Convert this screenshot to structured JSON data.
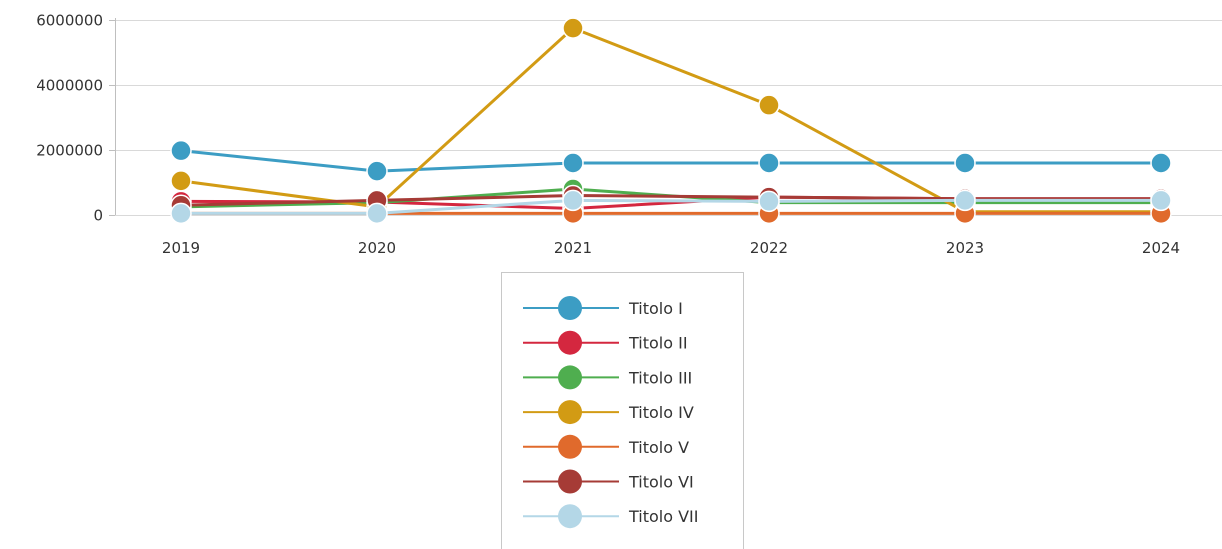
{
  "chart_data": {
    "type": "line",
    "title": "",
    "xlabel": "",
    "ylabel": "",
    "categories": [
      "2019",
      "2020",
      "2021",
      "2022",
      "2023",
      "2024"
    ],
    "ylim": [
      0,
      6000000
    ],
    "yticks": [
      0,
      2000000,
      4000000,
      6000000
    ],
    "ytick_labels": [
      "0",
      "2000000",
      "4000000",
      "6000000"
    ],
    "grid": true,
    "legend_position": "bottom-center",
    "series": [
      {
        "name": "Titolo I",
        "color": "#3c9dc4",
        "values": [
          1980000,
          1350000,
          1600000,
          1600000,
          1600000,
          1600000
        ]
      },
      {
        "name": "Titolo II",
        "color": "#d4273f",
        "values": [
          420000,
          400000,
          200000,
          550000,
          500000,
          500000
        ]
      },
      {
        "name": "Titolo III",
        "color": "#4fae4f",
        "values": [
          250000,
          380000,
          800000,
          380000,
          380000,
          380000
        ]
      },
      {
        "name": "Titolo IV",
        "color": "#d29b14",
        "values": [
          1050000,
          250000,
          5750000,
          3380000,
          100000,
          100000
        ]
      },
      {
        "name": "Titolo V",
        "color": "#e06a2c",
        "values": [
          50000,
          50000,
          50000,
          50000,
          50000,
          50000
        ]
      },
      {
        "name": "Titolo VI",
        "color": "#a63b36",
        "values": [
          300000,
          450000,
          600000,
          550000,
          500000,
          500000
        ]
      },
      {
        "name": "Titolo VII",
        "color": "#b4d7e7",
        "values": [
          50000,
          50000,
          450000,
          420000,
          450000,
          450000
        ]
      }
    ]
  }
}
